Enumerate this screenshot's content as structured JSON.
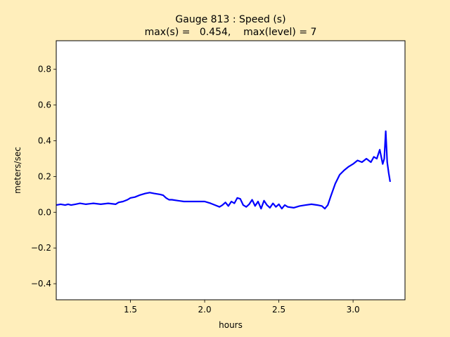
{
  "chart_data": {
    "type": "line",
    "title": "Gauge 813 : Speed (s)",
    "subtitle": "max(s) =   0.454,    max(level) = 7",
    "xlabel": "hours",
    "ylabel": "meters/sec",
    "xlim": [
      1.0,
      3.35
    ],
    "ylim": [
      -0.49,
      0.96
    ],
    "xticks": [
      {
        "value": 1.5,
        "label": "1.5"
      },
      {
        "value": 2.0,
        "label": "2.0"
      },
      {
        "value": 2.5,
        "label": "2.5"
      },
      {
        "value": 3.0,
        "label": "3.0"
      }
    ],
    "yticks": [
      {
        "value": -0.4,
        "label": "−0.4"
      },
      {
        "value": -0.2,
        "label": "−0.2"
      },
      {
        "value": 0.0,
        "label": "0.0"
      },
      {
        "value": 0.2,
        "label": "0.2"
      },
      {
        "value": 0.4,
        "label": "0.4"
      },
      {
        "value": 0.6,
        "label": "0.6"
      },
      {
        "value": 0.8,
        "label": "0.8"
      }
    ],
    "grid": false,
    "series": [
      {
        "color": "#0000ff",
        "x": [
          1.0,
          1.03,
          1.06,
          1.08,
          1.1,
          1.13,
          1.16,
          1.2,
          1.25,
          1.3,
          1.35,
          1.4,
          1.42,
          1.45,
          1.48,
          1.5,
          1.53,
          1.56,
          1.6,
          1.63,
          1.66,
          1.7,
          1.72,
          1.74,
          1.76,
          1.78,
          1.82,
          1.86,
          1.9,
          1.95,
          2.0,
          2.04,
          2.07,
          2.1,
          2.12,
          2.14,
          2.16,
          2.18,
          2.2,
          2.22,
          2.24,
          2.26,
          2.28,
          2.3,
          2.32,
          2.34,
          2.36,
          2.38,
          2.4,
          2.42,
          2.44,
          2.46,
          2.48,
          2.5,
          2.52,
          2.54,
          2.56,
          2.6,
          2.64,
          2.68,
          2.72,
          2.76,
          2.79,
          2.81,
          2.83,
          2.85,
          2.88,
          2.91,
          2.94,
          2.97,
          3.0,
          3.03,
          3.06,
          3.09,
          3.12,
          3.14,
          3.16,
          3.18,
          3.2,
          3.21,
          3.22,
          3.23,
          3.24,
          3.25
        ],
        "y": [
          0.04,
          0.045,
          0.04,
          0.045,
          0.04,
          0.045,
          0.05,
          0.045,
          0.05,
          0.045,
          0.05,
          0.045,
          0.055,
          0.06,
          0.07,
          0.08,
          0.085,
          0.095,
          0.105,
          0.11,
          0.105,
          0.1,
          0.095,
          0.08,
          0.07,
          0.07,
          0.065,
          0.06,
          0.06,
          0.06,
          0.06,
          0.05,
          0.04,
          0.03,
          0.04,
          0.055,
          0.035,
          0.06,
          0.05,
          0.08,
          0.075,
          0.04,
          0.03,
          0.045,
          0.07,
          0.035,
          0.06,
          0.02,
          0.065,
          0.04,
          0.025,
          0.05,
          0.03,
          0.045,
          0.02,
          0.04,
          0.03,
          0.025,
          0.035,
          0.04,
          0.045,
          0.04,
          0.035,
          0.02,
          0.04,
          0.09,
          0.16,
          0.21,
          0.235,
          0.255,
          0.27,
          0.29,
          0.28,
          0.3,
          0.28,
          0.31,
          0.3,
          0.35,
          0.27,
          0.3,
          0.454,
          0.28,
          0.22,
          0.17
        ]
      }
    ]
  }
}
